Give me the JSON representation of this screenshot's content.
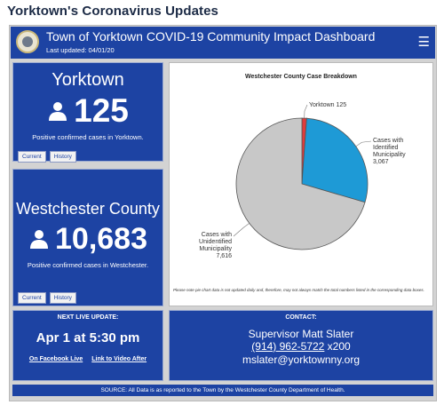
{
  "page_title": "Yorktown's Coronavirus Updates",
  "header": {
    "title": "Town of Yorktown COVID-19 Community Impact Dashboard",
    "last_updated": "Last updated: 04/01/20",
    "menu_icon": "hamburger-menu-icon",
    "logo": "town-seal-logo"
  },
  "yorktown_card": {
    "name": "Yorktown",
    "count": "125",
    "caption": "Positive confirmed cases in Yorktown.",
    "icon": "person-icon",
    "tabs": [
      "Current",
      "History"
    ]
  },
  "westchester_card": {
    "name": "Westchester County",
    "count": "10,683",
    "caption": "Positive confirmed cases in Westchester.",
    "icon": "person-icon",
    "tabs": [
      "Current",
      "History"
    ]
  },
  "chart_data": {
    "type": "pie",
    "title": "Westchester County Case Breakdown",
    "slices": [
      {
        "label": "Yorktown 125",
        "value": 125,
        "color": "#e03c3c"
      },
      {
        "label_lines": [
          "Cases with",
          "Identified",
          "Municipality",
          "3,067"
        ],
        "value": 3067,
        "color": "#1e9ad6"
      },
      {
        "label_lines": [
          "Cases with",
          "Unidentified",
          "Municipality",
          "7,616"
        ],
        "value": 7616,
        "color": "#c8c8c8"
      }
    ],
    "note": "Please note pie chart data is not updated daily and, therefore, may not always match the total numbers listed in the corresponding data boxes."
  },
  "live_update": {
    "heading": "NEXT LIVE UPDATE:",
    "time": "Apr 1 at 5:30 pm",
    "link_facebook": "On Facebook Live",
    "link_video": "Link to Video After"
  },
  "contact": {
    "heading": "CONTACT:",
    "name": "Supervisor Matt Slater",
    "phone": "(914) 962-5722",
    "ext": " x200",
    "email": "mslater@yorktownny.org"
  },
  "source": "SOURCE: All Data is as reported to the Town by the Westchester County Department of Health.",
  "colors": {
    "panel_blue": "#1d43a3",
    "frame_gray": "#d3d3d3"
  }
}
